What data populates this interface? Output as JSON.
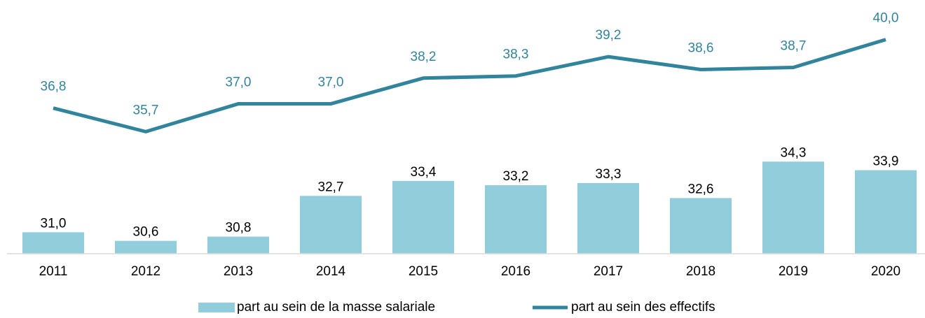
{
  "chart_data": {
    "type": "bar",
    "categories": [
      "2011",
      "2012",
      "2013",
      "2014",
      "2015",
      "2016",
      "2017",
      "2018",
      "2019",
      "2020"
    ],
    "ylim": [
      30,
      41
    ],
    "series": [
      {
        "name": "part au sein de la masse salariale",
        "type": "bar",
        "color": "#92cddc",
        "values": [
          31.0,
          30.6,
          30.8,
          32.7,
          33.4,
          33.2,
          33.3,
          32.6,
          34.3,
          33.9
        ],
        "value_labels": [
          "31,0",
          "30,6",
          "30,8",
          "32,7",
          "33,4",
          "33,2",
          "33,3",
          "32,6",
          "34,3",
          "33,9"
        ]
      },
      {
        "name": "part au sein des effectifs",
        "type": "line",
        "color": "#31849b",
        "values": [
          36.8,
          35.7,
          37.0,
          37.0,
          38.2,
          38.3,
          39.2,
          38.6,
          38.7,
          40.0
        ],
        "value_labels": [
          "36,8",
          "35,7",
          "37,0",
          "37,0",
          "38,2",
          "38,3",
          "39,2",
          "38,6",
          "38,7",
          "40,0"
        ]
      }
    ]
  }
}
